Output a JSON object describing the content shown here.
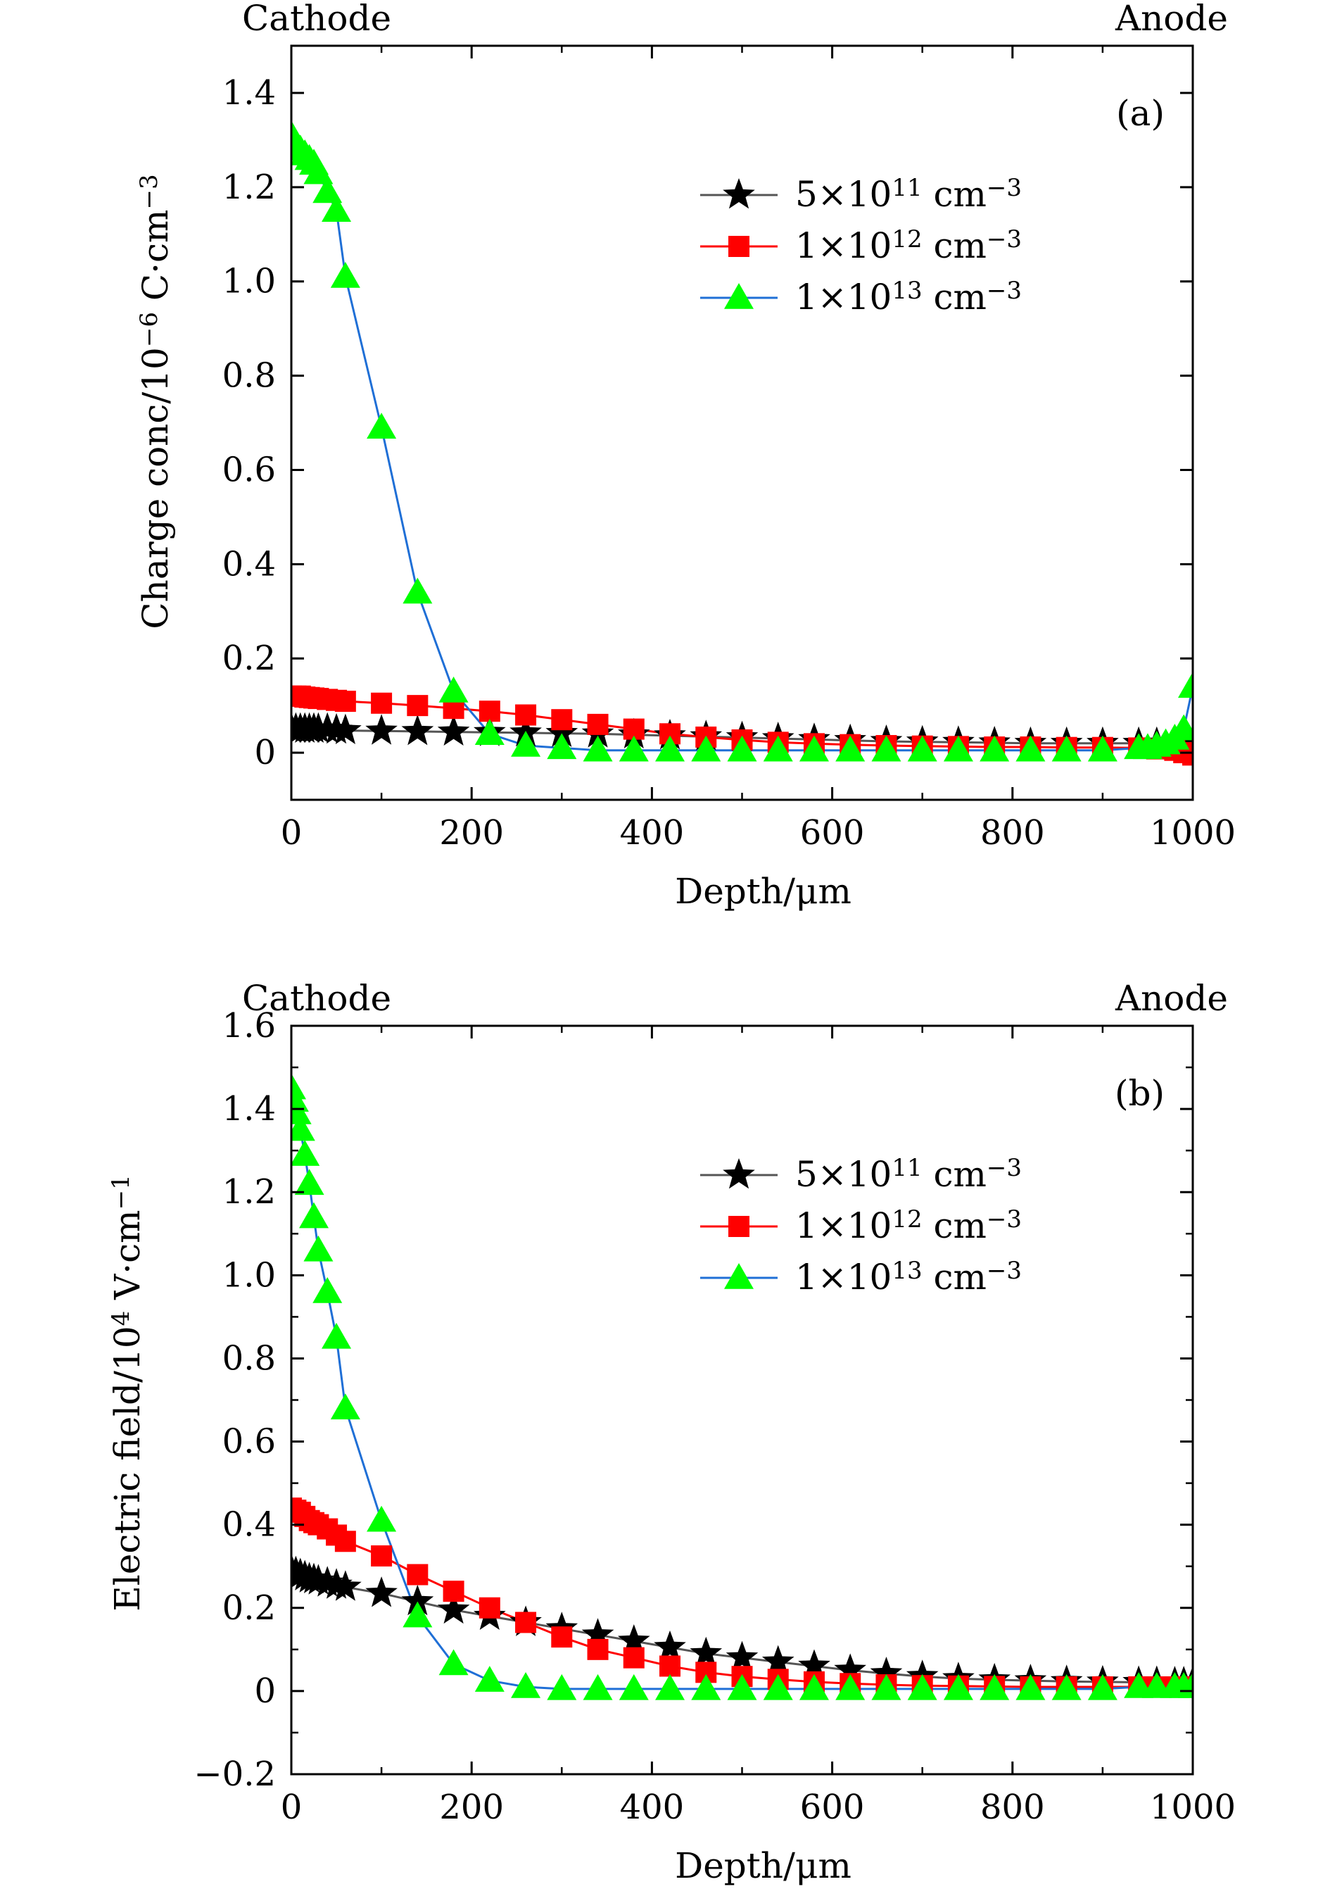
{
  "chart_data": [
    {
      "type": "line",
      "panel_label": "(a)",
      "corner_labels": {
        "left": "Cathode",
        "right": "Anode"
      },
      "xlabel": "Depth/μm",
      "ylabel": {
        "base": "Charge conc/10",
        "exp": "−6",
        "unit": " C·cm",
        "unit_exp": "−3"
      },
      "xlim": [
        0,
        1000
      ],
      "ylim": [
        -0.1,
        1.5
      ],
      "xticks": [
        0,
        200,
        400,
        600,
        800,
        1000
      ],
      "xtick_labels": [
        "0",
        "200",
        "400",
        "600",
        "800",
        "1000"
      ],
      "yticks": [
        0,
        0.2,
        0.4,
        0.6,
        0.8,
        1.0,
        1.2,
        1.4
      ],
      "ytick_labels": [
        "0",
        "0.2",
        "0.4",
        "0.6",
        "0.8",
        "1.0",
        "1.2",
        "1.4"
      ],
      "legend_position": "upper-right",
      "series": [
        {
          "name": "5×10¹¹ cm⁻³",
          "legend": {
            "coef": "5",
            "exp": "11",
            "unit_exp": "−3"
          },
          "marker": "star",
          "marker_color": "#000000",
          "line_color": "#555555",
          "x": [
            0,
            5,
            10,
            15,
            20,
            25,
            30,
            40,
            50,
            60,
            100,
            140,
            180,
            220,
            260,
            300,
            340,
            380,
            420,
            460,
            500,
            540,
            580,
            620,
            660,
            700,
            740,
            780,
            820,
            860,
            900,
            940,
            960,
            980,
            990,
            1000
          ],
          "y": [
            0.05,
            0.05,
            0.05,
            0.05,
            0.05,
            0.05,
            0.05,
            0.05,
            0.048,
            0.047,
            0.046,
            0.045,
            0.044,
            0.043,
            0.042,
            0.041,
            0.04,
            0.038,
            0.036,
            0.034,
            0.032,
            0.03,
            0.028,
            0.026,
            0.024,
            0.023,
            0.022,
            0.021,
            0.02,
            0.02,
            0.02,
            0.02,
            0.02,
            0.02,
            0.02,
            0.02
          ]
        },
        {
          "name": "1×10¹² cm⁻³",
          "legend": {
            "coef": "1",
            "exp": "12",
            "unit_exp": "−3"
          },
          "marker": "square",
          "marker_color": "#ff0000",
          "line_color": "#ff0000",
          "x": [
            0,
            5,
            10,
            15,
            20,
            25,
            30,
            40,
            50,
            60,
            100,
            140,
            180,
            220,
            260,
            300,
            340,
            380,
            420,
            460,
            500,
            540,
            580,
            620,
            660,
            700,
            740,
            780,
            820,
            860,
            900,
            940,
            960,
            980,
            990,
            1000
          ],
          "y": [
            0.12,
            0.12,
            0.12,
            0.118,
            0.117,
            0.116,
            0.115,
            0.113,
            0.111,
            0.109,
            0.105,
            0.1,
            0.094,
            0.088,
            0.08,
            0.07,
            0.06,
            0.05,
            0.04,
            0.033,
            0.027,
            0.022,
            0.019,
            0.017,
            0.015,
            0.014,
            0.013,
            0.012,
            0.012,
            0.011,
            0.011,
            0.01,
            0.008,
            0.005,
            0.0,
            -0.005
          ]
        },
        {
          "name": "1×10¹³ cm⁻³",
          "legend": {
            "coef": "1",
            "exp": "13",
            "unit_exp": "−3"
          },
          "marker": "triangle",
          "marker_color": "#00ff00",
          "line_color": "#1f6fd6",
          "x": [
            0,
            5,
            10,
            15,
            20,
            25,
            30,
            40,
            50,
            60,
            100,
            140,
            180,
            220,
            260,
            300,
            340,
            380,
            420,
            460,
            500,
            540,
            580,
            620,
            660,
            700,
            740,
            780,
            820,
            860,
            900,
            940,
            950,
            960,
            970,
            980,
            990,
            1000
          ],
          "y": [
            1.31,
            1.29,
            1.28,
            1.27,
            1.26,
            1.25,
            1.23,
            1.19,
            1.15,
            1.01,
            0.69,
            0.34,
            0.13,
            0.04,
            0.015,
            0.01,
            0.005,
            0.005,
            0.005,
            0.005,
            0.005,
            0.005,
            0.005,
            0.005,
            0.005,
            0.005,
            0.005,
            0.005,
            0.005,
            0.005,
            0.005,
            0.01,
            0.01,
            0.015,
            0.02,
            0.03,
            0.05,
            0.14
          ]
        }
      ]
    },
    {
      "type": "line",
      "panel_label": "(b)",
      "corner_labels": {
        "left": "Cathode",
        "right": "Anode"
      },
      "xlabel": "Depth/μm",
      "ylabel": {
        "base": "Electric field/10",
        "exp": "4",
        "unit": " V·cm",
        "unit_exp": "−1"
      },
      "xlim": [
        0,
        1000
      ],
      "ylim": [
        -0.2,
        1.6
      ],
      "xticks": [
        0,
        200,
        400,
        600,
        800,
        1000
      ],
      "xtick_labels": [
        "0",
        "200",
        "400",
        "600",
        "800",
        "1000"
      ],
      "yticks": [
        -0.2,
        0,
        0.2,
        0.4,
        0.6,
        0.8,
        1.0,
        1.2,
        1.4,
        1.6
      ],
      "ytick_labels": [
        "−0.2",
        "0",
        "0.2",
        "0.4",
        "0.6",
        "0.8",
        "1.0",
        "1.2",
        "1.4",
        "1.6"
      ],
      "legend_position": "upper-right",
      "series": [
        {
          "name": "5×10¹¹ cm⁻³",
          "legend": {
            "coef": "5",
            "exp": "11",
            "unit_exp": "−3"
          },
          "marker": "star",
          "marker_color": "#000000",
          "line_color": "#555555",
          "x": [
            0,
            5,
            10,
            15,
            20,
            25,
            30,
            40,
            50,
            60,
            100,
            140,
            180,
            220,
            260,
            300,
            340,
            380,
            420,
            460,
            500,
            540,
            580,
            620,
            660,
            700,
            740,
            780,
            820,
            860,
            900,
            940,
            960,
            980,
            990,
            1000
          ],
          "y": [
            0.29,
            0.285,
            0.28,
            0.275,
            0.27,
            0.268,
            0.265,
            0.26,
            0.255,
            0.25,
            0.235,
            0.215,
            0.195,
            0.18,
            0.165,
            0.15,
            0.135,
            0.12,
            0.105,
            0.09,
            0.08,
            0.07,
            0.06,
            0.05,
            0.042,
            0.035,
            0.03,
            0.027,
            0.025,
            0.023,
            0.022,
            0.021,
            0.021,
            0.02,
            0.02,
            0.02
          ]
        },
        {
          "name": "1×10¹² cm⁻³",
          "legend": {
            "coef": "1",
            "exp": "12",
            "unit_exp": "−3"
          },
          "marker": "square",
          "marker_color": "#ff0000",
          "line_color": "#ff0000",
          "x": [
            0,
            5,
            10,
            15,
            20,
            25,
            30,
            40,
            50,
            60,
            100,
            140,
            180,
            220,
            260,
            300,
            340,
            380,
            420,
            460,
            500,
            540,
            580,
            620,
            660,
            700,
            740,
            780,
            820,
            860,
            900,
            940,
            960,
            980,
            990,
            1000
          ],
          "y": [
            0.44,
            0.435,
            0.43,
            0.42,
            0.41,
            0.405,
            0.4,
            0.39,
            0.375,
            0.36,
            0.325,
            0.28,
            0.24,
            0.2,
            0.165,
            0.13,
            0.1,
            0.08,
            0.06,
            0.045,
            0.035,
            0.028,
            0.022,
            0.018,
            0.015,
            0.013,
            0.012,
            0.011,
            0.01,
            0.01,
            0.01,
            0.01,
            0.01,
            0.01,
            0.01,
            0.01
          ]
        },
        {
          "name": "1×10¹³ cm⁻³",
          "legend": {
            "coef": "1",
            "exp": "13",
            "unit_exp": "−3"
          },
          "marker": "triangle",
          "marker_color": "#00ff00",
          "line_color": "#1f6fd6",
          "x": [
            0,
            3,
            6,
            10,
            15,
            20,
            25,
            30,
            40,
            50,
            60,
            100,
            140,
            180,
            220,
            260,
            300,
            340,
            380,
            420,
            460,
            500,
            540,
            580,
            620,
            660,
            700,
            740,
            780,
            820,
            860,
            900,
            940,
            960,
            980,
            990,
            1000
          ],
          "y": [
            1.45,
            1.42,
            1.39,
            1.35,
            1.29,
            1.22,
            1.14,
            1.06,
            0.96,
            0.85,
            0.68,
            0.41,
            0.18,
            0.065,
            0.025,
            0.01,
            0.005,
            0.005,
            0.005,
            0.005,
            0.005,
            0.005,
            0.005,
            0.005,
            0.005,
            0.005,
            0.005,
            0.005,
            0.005,
            0.005,
            0.005,
            0.005,
            0.01,
            0.01,
            0.01,
            0.01,
            0.01
          ]
        }
      ]
    }
  ]
}
